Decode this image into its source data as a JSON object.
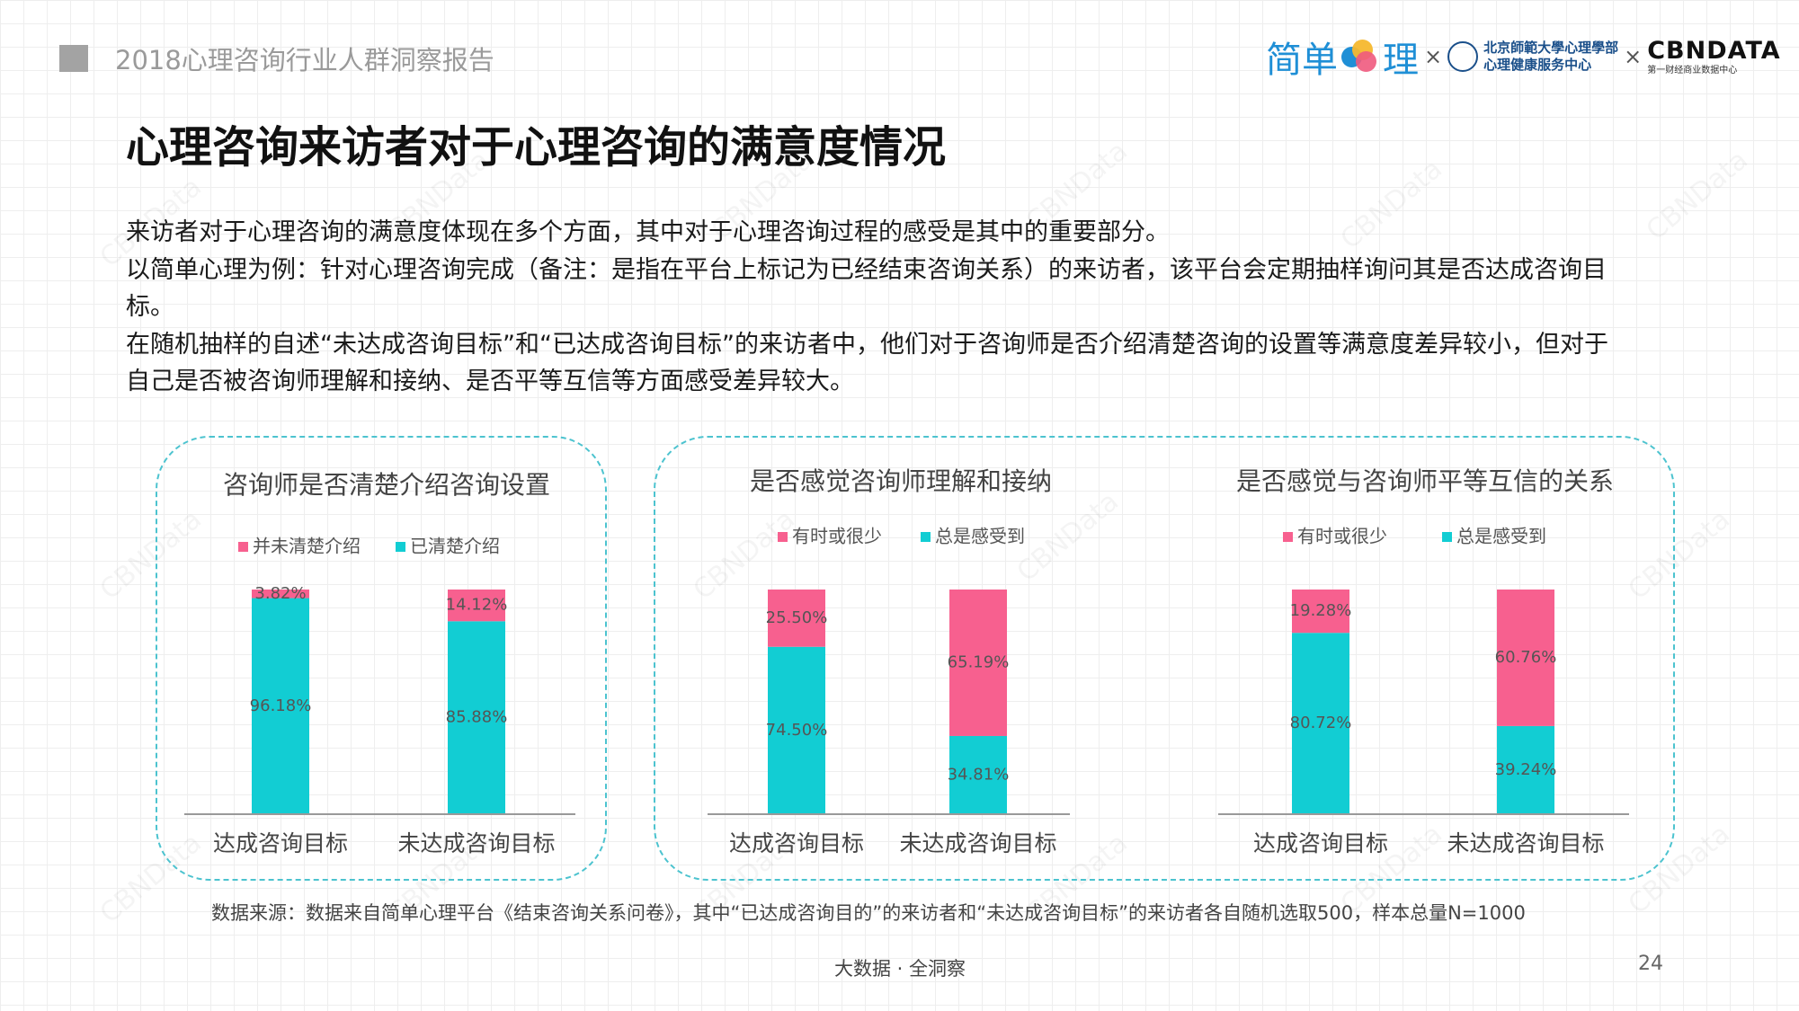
{
  "header": {
    "report_title": "2018心理咨询行业人群洞察报告",
    "logos": {
      "partner1_left": "简单",
      "partner1_right": "理",
      "times": "×",
      "partner2_line1": "北京師範大學心理學部",
      "partner2_line2": "心理健康服务中心",
      "partner3_main": "CBNDATA",
      "partner3_sub": "第一财经商业数据中心"
    }
  },
  "main_title": "心理咨询来访者对于心理咨询的满意度情况",
  "paragraphs": [
    "来访者对于心理咨询的满意度体现在多个方面，其中对于心理咨询过程的感受是其中的重要部分。",
    "以简单心理为例：针对心理咨询完成（备注：是指在平台上标记为已经结束咨询关系）的来访者，该平台会定期抽样询问其是否达成咨询目标。",
    "在随机抽样的自述“未达成咨询目标”和“已达成咨询目标”的来访者中，他们对于咨询师是否介绍清楚咨询的设置等满意度差异较小，但对于自己是否被咨询师理解和接纳、是否平等互信等方面感受差异较大。"
  ],
  "colors": {
    "pink": "#f7608f",
    "teal": "#12cdd3",
    "panel_border": "#4cc3cf",
    "logo_blue": "#1f8fd6"
  },
  "watermark": "CBNData",
  "chart_data": [
    {
      "type": "bar",
      "stacked": true,
      "title": "咨询师是否清楚介绍咨询设置",
      "categories": [
        "达成咨询目标",
        "未达成咨询目标"
      ],
      "series": [
        {
          "name": "并未清楚介绍",
          "color": "#f7608f",
          "values": [
            3.82,
            14.12
          ],
          "labels": [
            "3.82%",
            "14.12%"
          ]
        },
        {
          "name": "已清楚介绍",
          "color": "#12cdd3",
          "values": [
            96.18,
            85.88
          ],
          "labels": [
            "96.18%",
            "85.88%"
          ]
        }
      ],
      "ylim": [
        0,
        100
      ],
      "legend": "top",
      "grid": false
    },
    {
      "type": "bar",
      "stacked": true,
      "title": "是否感觉咨询师理解和接纳",
      "categories": [
        "达成咨询目标",
        "未达成咨询目标"
      ],
      "series": [
        {
          "name": "有时或很少",
          "color": "#f7608f",
          "values": [
            25.5,
            65.19
          ],
          "labels": [
            "25.50%",
            "65.19%"
          ]
        },
        {
          "name": "总是感受到",
          "color": "#12cdd3",
          "values": [
            74.5,
            34.81
          ],
          "labels": [
            "74.50%",
            "34.81%"
          ]
        }
      ],
      "ylim": [
        0,
        100
      ],
      "legend": "top",
      "grid": false
    },
    {
      "type": "bar",
      "stacked": true,
      "title": "是否感觉与咨询师平等互信的关系",
      "categories": [
        "达成咨询目标",
        "未达成咨询目标"
      ],
      "series": [
        {
          "name": "有时或很少",
          "color": "#f7608f",
          "values": [
            19.28,
            60.76
          ],
          "labels": [
            "19.28%",
            "60.76%"
          ]
        },
        {
          "name": "总是感受到",
          "color": "#12cdd3",
          "values": [
            80.72,
            39.24
          ],
          "labels": [
            "80.72%",
            "39.24%"
          ]
        }
      ],
      "ylim": [
        0,
        100
      ],
      "legend": "top",
      "grid": false
    }
  ],
  "source": "数据来源：数据来自简单心理平台《结束咨询关系问卷》，其中“已达成咨询目的”的来访者和“未达成咨询目标”的来访者各自随机选取500，样本总量N=1000",
  "footer": {
    "text": "大数据 · 全洞察",
    "page_number": "24"
  }
}
